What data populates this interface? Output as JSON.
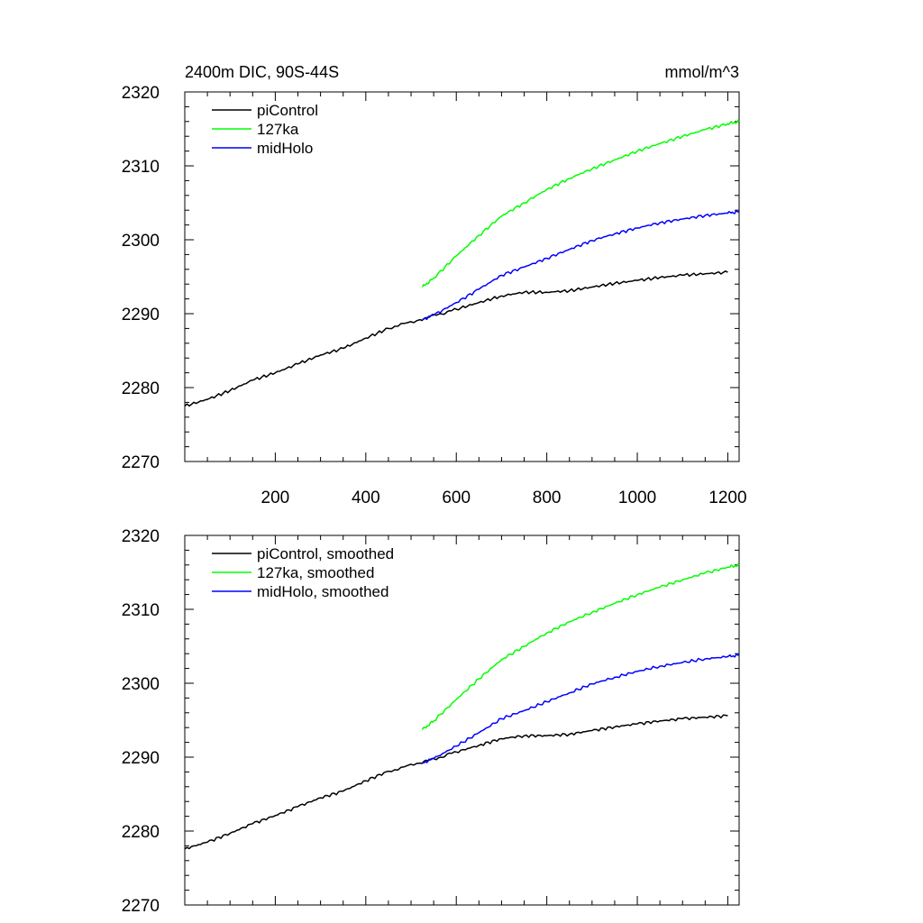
{
  "chart_data": [
    {
      "type": "line",
      "title_left": "2400m DIC, 90S-44S",
      "title_right": "mmol/m^3",
      "xlabel": "",
      "ylabel": "",
      "xlim": [
        0,
        1225
      ],
      "ylim": [
        2270,
        2320
      ],
      "x_ticks": [
        200,
        400,
        600,
        800,
        1000,
        1200
      ],
      "x_tick_labels": [
        "200",
        "400",
        "600",
        "800",
        "1000",
        "1200"
      ],
      "y_ticks": [
        2270,
        2280,
        2290,
        2300,
        2310,
        2320
      ],
      "y_tick_labels": [
        "2270",
        "2280",
        "2290",
        "2300",
        "2310",
        "2320"
      ],
      "legend_position": "top-left",
      "series": [
        {
          "name": "piControl",
          "color": "#000000",
          "x": [
            0,
            50,
            100,
            150,
            200,
            250,
            300,
            350,
            400,
            450,
            520,
            560,
            600,
            650,
            700,
            750,
            800,
            850,
            900,
            950,
            1000,
            1050,
            1100,
            1150,
            1200
          ],
          "y": [
            2277.5,
            2278.4,
            2279.6,
            2281.0,
            2282.0,
            2283.2,
            2284.4,
            2285.3,
            2286.7,
            2288.0,
            2289.2,
            2289.9,
            2290.6,
            2291.5,
            2292.4,
            2292.9,
            2292.9,
            2293.1,
            2293.6,
            2294.1,
            2294.5,
            2294.9,
            2295.2,
            2295.4,
            2295.6
          ]
        },
        {
          "name": "127ka",
          "color": "#00ff00",
          "x": [
            525,
            550,
            600,
            650,
            700,
            750,
            800,
            850,
            900,
            950,
            1000,
            1050,
            1100,
            1150,
            1200,
            1225
          ],
          "y": [
            2293.6,
            2294.8,
            2297.8,
            2300.6,
            2303.2,
            2305.0,
            2306.8,
            2308.3,
            2309.6,
            2310.8,
            2312.0,
            2313.0,
            2314.0,
            2314.9,
            2315.7,
            2316.0
          ]
        },
        {
          "name": "midHolo",
          "color": "#0000ff",
          "x": [
            525,
            550,
            600,
            650,
            700,
            750,
            800,
            850,
            900,
            950,
            1000,
            1050,
            1100,
            1150,
            1200,
            1225
          ],
          "y": [
            2289.2,
            2289.8,
            2291.5,
            2293.3,
            2295.2,
            2296.3,
            2297.5,
            2298.7,
            2299.9,
            2300.8,
            2301.6,
            2302.3,
            2302.8,
            2303.3,
            2303.6,
            2303.8
          ]
        }
      ]
    },
    {
      "type": "line",
      "title_left": "",
      "title_right": "",
      "xlabel": "",
      "ylabel": "",
      "xlim": [
        0,
        1225
      ],
      "ylim": [
        2270,
        2320
      ],
      "x_ticks": [
        200,
        400,
        600,
        800,
        1000,
        1200
      ],
      "x_tick_labels": [],
      "y_ticks": [
        2270,
        2280,
        2290,
        2300,
        2310,
        2320
      ],
      "y_tick_labels": [
        "2270",
        "2280",
        "2290",
        "2300",
        "2310",
        "2320"
      ],
      "legend_position": "top-left",
      "series": [
        {
          "name": "piControl, smoothed",
          "color": "#000000",
          "x": [
            0,
            50,
            100,
            150,
            200,
            250,
            300,
            350,
            400,
            450,
            520,
            560,
            600,
            650,
            700,
            750,
            800,
            850,
            900,
            950,
            1000,
            1050,
            1100,
            1150,
            1200
          ],
          "y": [
            2277.6,
            2278.5,
            2279.7,
            2281.0,
            2282.1,
            2283.3,
            2284.5,
            2285.4,
            2286.8,
            2288.1,
            2289.2,
            2289.9,
            2290.7,
            2291.6,
            2292.5,
            2292.9,
            2292.9,
            2293.1,
            2293.6,
            2294.1,
            2294.5,
            2294.9,
            2295.2,
            2295.4,
            2295.6
          ]
        },
        {
          "name": "127ka, smoothed",
          "color": "#00ff00",
          "x": [
            525,
            550,
            600,
            650,
            700,
            750,
            800,
            850,
            900,
            950,
            1000,
            1050,
            1100,
            1150,
            1200,
            1225
          ],
          "y": [
            2293.7,
            2294.9,
            2297.8,
            2300.6,
            2303.2,
            2305.0,
            2306.8,
            2308.3,
            2309.6,
            2310.8,
            2312.0,
            2313.0,
            2314.0,
            2314.9,
            2315.7,
            2316.0
          ]
        },
        {
          "name": "midHolo, smoothed",
          "color": "#0000ff",
          "x": [
            525,
            550,
            600,
            650,
            700,
            750,
            800,
            850,
            900,
            950,
            1000,
            1050,
            1100,
            1150,
            1200,
            1225
          ],
          "y": [
            2289.2,
            2289.8,
            2291.5,
            2293.3,
            2295.2,
            2296.3,
            2297.5,
            2298.7,
            2299.9,
            2300.8,
            2301.6,
            2302.3,
            2302.8,
            2303.3,
            2303.6,
            2303.8
          ]
        }
      ]
    }
  ]
}
